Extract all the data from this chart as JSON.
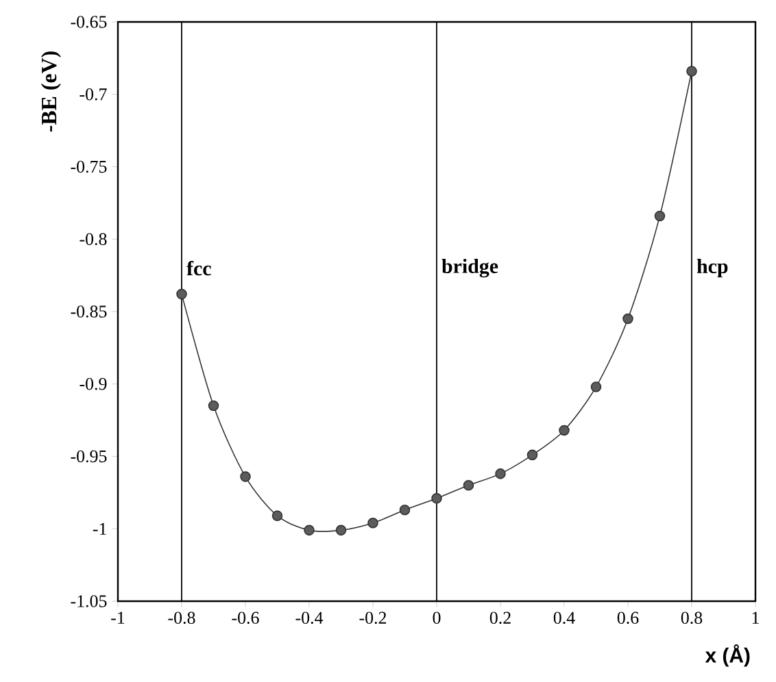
{
  "chart_data": {
    "type": "line",
    "xlabel": "x (Å)",
    "ylabel": "-BE (eV)",
    "x": [
      -0.8,
      -0.7,
      -0.6,
      -0.5,
      -0.4,
      -0.3,
      -0.2,
      -0.1,
      0,
      0.1,
      0.2,
      0.3,
      0.4,
      0.5,
      0.6,
      0.7,
      0.8
    ],
    "series": [
      {
        "color": "#333333",
        "values": [
          -0.838,
          -0.915,
          -0.964,
          -0.991,
          -1.001,
          -1.001,
          -0.996,
          -0.987,
          -0.979,
          -0.97,
          -0.962,
          -0.949,
          -0.932,
          -0.902,
          -0.855,
          -0.784,
          -0.684
        ]
      }
    ],
    "xlim": [
      -1,
      1
    ],
    "ylim": [
      -1.05,
      -0.65
    ],
    "xticks": [
      -1,
      -0.8,
      -0.6,
      -0.4,
      -0.2,
      0,
      0.2,
      0.4,
      0.6,
      0.8,
      1
    ],
    "yticks": [
      -1.05,
      -1,
      -0.95,
      -0.9,
      -0.85,
      -0.8,
      -0.75,
      -0.7,
      -0.65
    ],
    "ref_lines": [
      {
        "axis": "x",
        "value": -0.8,
        "label": "fcc",
        "color": "#000000"
      },
      {
        "axis": "x",
        "value": 0,
        "label": "bridge",
        "color": "#000000"
      },
      {
        "axis": "x",
        "value": 0.8,
        "label": "hcp",
        "color": "#000000"
      }
    ],
    "marker": "circle",
    "line_style": "solid"
  }
}
